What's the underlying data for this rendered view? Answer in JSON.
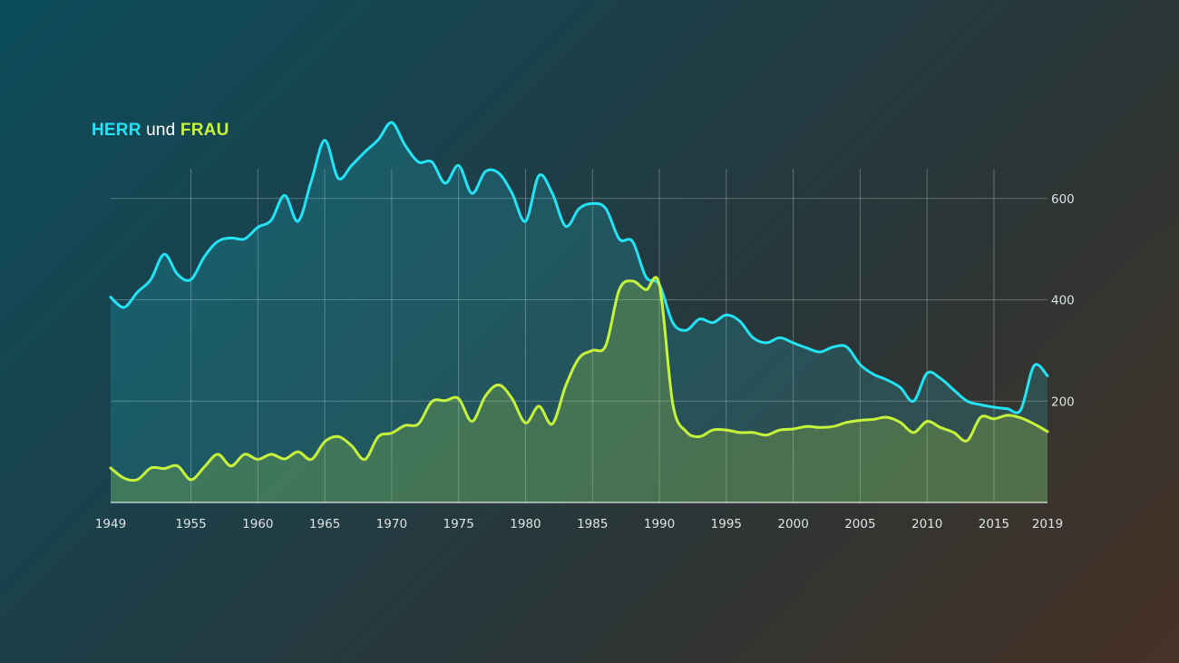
{
  "legend": {
    "series_a": "HERR",
    "joiner": "und",
    "series_b": "FRAU"
  },
  "colors": {
    "herr": "#23e3f6",
    "frau": "#c6f53c"
  },
  "chart_data": {
    "type": "area",
    "title": "HERR und FRAU",
    "xlabel": "",
    "ylabel": "",
    "xlim": [
      1949,
      2019
    ],
    "ylim": [
      0,
      750
    ],
    "grid": true,
    "x_ticks": [
      "1949",
      "1955",
      "1960",
      "1965",
      "1970",
      "1975",
      "1980",
      "1985",
      "1990",
      "1995",
      "2000",
      "2005",
      "2010",
      "2015",
      "2019"
    ],
    "y_ticks": [
      "200",
      "400",
      "600"
    ],
    "series": [
      {
        "name": "HERR",
        "x": [
          1949,
          1950,
          1951,
          1952,
          1953,
          1954,
          1955,
          1956,
          1957,
          1958,
          1959,
          1960,
          1961,
          1962,
          1963,
          1964,
          1965,
          1966,
          1967,
          1968,
          1969,
          1970,
          1971,
          1972,
          1973,
          1974,
          1975,
          1976,
          1977,
          1978,
          1979,
          1980,
          1981,
          1982,
          1983,
          1984,
          1985,
          1986,
          1987,
          1988,
          1989,
          1990,
          1991,
          1992,
          1993,
          1994,
          1995,
          1996,
          1997,
          1998,
          1999,
          2000,
          2001,
          2002,
          2003,
          2004,
          2005,
          2006,
          2007,
          2008,
          2009,
          2010,
          2011,
          2012,
          2013,
          2014,
          2015,
          2016,
          2017,
          2018,
          2019
        ],
        "values": [
          405,
          385,
          415,
          440,
          490,
          450,
          440,
          485,
          515,
          522,
          520,
          543,
          557,
          606,
          555,
          635,
          715,
          640,
          665,
          692,
          716,
          750,
          705,
          672,
          672,
          630,
          665,
          610,
          653,
          650,
          610,
          555,
          645,
          610,
          545,
          580,
          590,
          580,
          520,
          515,
          445,
          430,
          355,
          340,
          362,
          355,
          370,
          358,
          325,
          315,
          325,
          315,
          305,
          297,
          307,
          307,
          272,
          253,
          242,
          227,
          200,
          255,
          245,
          222,
          200,
          193,
          188,
          185,
          183,
          270,
          250
        ]
      },
      {
        "name": "FRAU",
        "x": [
          1949,
          1950,
          1951,
          1952,
          1953,
          1954,
          1955,
          1956,
          1957,
          1958,
          1959,
          1960,
          1961,
          1962,
          1963,
          1964,
          1965,
          1966,
          1967,
          1968,
          1969,
          1970,
          1971,
          1972,
          1973,
          1974,
          1975,
          1976,
          1977,
          1978,
          1979,
          1980,
          1981,
          1982,
          1983,
          1984,
          1985,
          1986,
          1987,
          1988,
          1989,
          1990,
          1991,
          1992,
          1993,
          1994,
          1995,
          1996,
          1997,
          1998,
          1999,
          2000,
          2001,
          2002,
          2003,
          2004,
          2005,
          2006,
          2007,
          2008,
          2009,
          2010,
          2011,
          2012,
          2013,
          2014,
          2015,
          2016,
          2017,
          2018,
          2019
        ],
        "values": [
          68,
          48,
          45,
          68,
          67,
          72,
          45,
          70,
          95,
          72,
          95,
          85,
          95,
          86,
          100,
          85,
          120,
          130,
          112,
          85,
          130,
          137,
          152,
          155,
          199,
          201,
          205,
          160,
          210,
          232,
          205,
          157,
          190,
          155,
          230,
          285,
          300,
          310,
          420,
          437,
          420,
          430,
          195,
          140,
          130,
          143,
          143,
          138,
          138,
          133,
          143,
          145,
          150,
          148,
          150,
          158,
          162,
          164,
          168,
          158,
          138,
          160,
          148,
          138,
          122,
          168,
          165,
          172,
          167,
          155,
          140
        ]
      }
    ]
  }
}
